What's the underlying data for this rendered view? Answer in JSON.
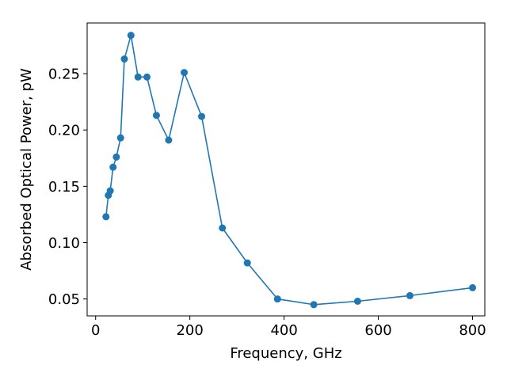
{
  "chart_data": {
    "type": "line",
    "xlabel": "Frequency, GHz",
    "ylabel": "Absorbed Optical Power, pW",
    "xlim": [
      -18,
      826
    ],
    "ylim": [
      0.035,
      0.295
    ],
    "xticks": [
      0,
      200,
      400,
      600,
      800
    ],
    "yticks": [
      0.05,
      0.1,
      0.15,
      0.2,
      0.25
    ],
    "xtick_labels": [
      "0",
      "200",
      "400",
      "600",
      "800"
    ],
    "ytick_labels": [
      "0.05",
      "0.10",
      "0.15",
      "0.20",
      "0.25"
    ],
    "grid": false,
    "series": [
      {
        "color": "#1f77b4",
        "marker": "circle",
        "x": [
          22,
          27,
          31,
          37,
          44,
          53,
          61,
          75,
          90,
          109,
          129,
          155,
          188,
          225,
          269,
          322,
          386,
          463,
          556,
          667,
          800
        ],
        "y": [
          0.123,
          0.142,
          0.146,
          0.167,
          0.176,
          0.193,
          0.263,
          0.284,
          0.247,
          0.247,
          0.213,
          0.191,
          0.251,
          0.212,
          0.113,
          0.082,
          0.05,
          0.045,
          0.048,
          0.053,
          0.06
        ]
      }
    ]
  }
}
